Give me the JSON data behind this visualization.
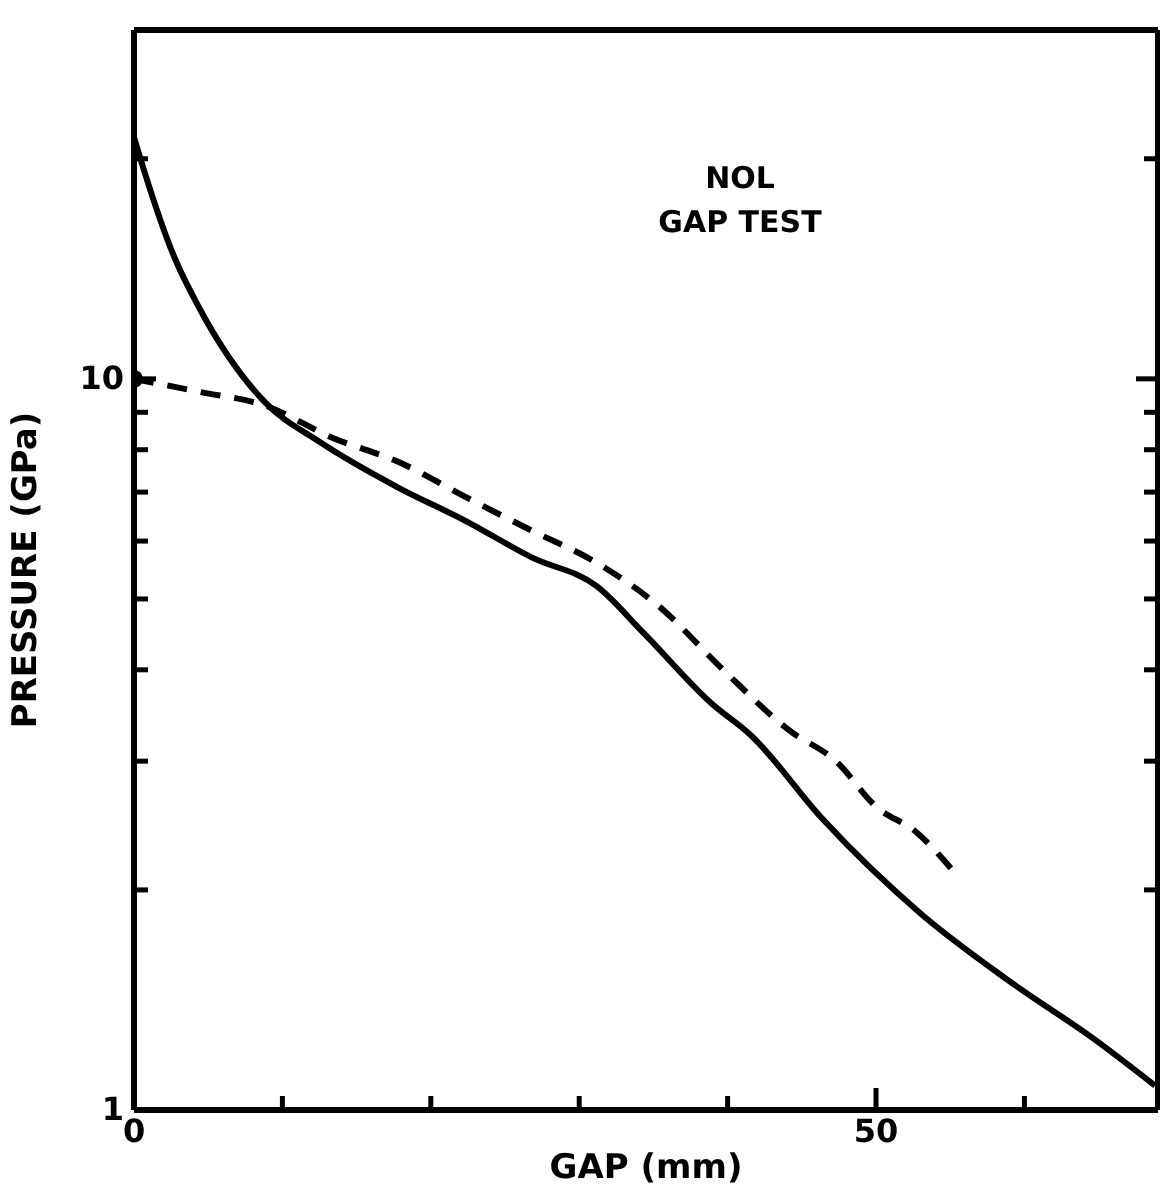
{
  "chart_data": {
    "type": "line",
    "xlabel": "GAP (mm)",
    "ylabel": "PRESSURE (GPa)",
    "annotations": [
      "NOL\nGAP TEST"
    ],
    "log": "y",
    "grid": false,
    "legend": false,
    "xlim": [
      0,
      69
    ],
    "xticks": [
      0,
      {
        "value": 10,
        "label": null
      },
      {
        "value": 20,
        "label": null
      },
      {
        "value": 30,
        "label": null
      },
      {
        "value": 40,
        "label": null
      },
      50,
      {
        "value": 60,
        "label": null
      }
    ],
    "ylim": [
      1,
      30
    ],
    "yticks": [
      1,
      {
        "value": 2,
        "label": null
      },
      {
        "value": 3,
        "label": null
      },
      {
        "value": 4,
        "label": null
      },
      {
        "value": 5,
        "label": null
      },
      {
        "value": 6,
        "label": null
      },
      {
        "value": 7,
        "label": null
      },
      {
        "value": 8,
        "label": null
      },
      {
        "value": 9,
        "label": null
      },
      10,
      {
        "value": 20,
        "label": null
      }
    ],
    "series": [
      {
        "color": "#000000",
        "line_style": "solid",
        "marker": "none",
        "x": [
          0,
          0.67,
          2.7,
          4.4,
          8.8,
          12.5,
          17.8,
          22.3,
          26.8,
          31.2,
          34.3,
          38.9,
          41.6,
          46.4,
          53.1,
          59.0,
          64.7,
          68.8
        ],
        "values": [
          21.4,
          19.3,
          14.7,
          12.5,
          9.3,
          8.2,
          7.1,
          6.4,
          5.7,
          5.2,
          4.5,
          3.6,
          3.25,
          2.5,
          1.85,
          1.5,
          1.25,
          1.08
        ]
      },
      {
        "color": "#000000",
        "line_style": "dashed",
        "marker": "none",
        "x": [
          0,
          4.4,
          8.8,
          13.4,
          17.8,
          22.3,
          26.8,
          31.2,
          35.3,
          39.7,
          44.2,
          47.3,
          50.0,
          52.7,
          55.4
        ],
        "values": [
          10,
          9.6,
          9.2,
          8.3,
          7.7,
          6.9,
          6.2,
          5.6,
          4.9,
          4.0,
          3.3,
          3.0,
          2.6,
          2.4,
          2.1
        ]
      },
      {
        "type": "scatter",
        "color": "#000000",
        "marker": "circle",
        "x": [
          0
        ],
        "values": [
          10
        ]
      }
    ]
  }
}
